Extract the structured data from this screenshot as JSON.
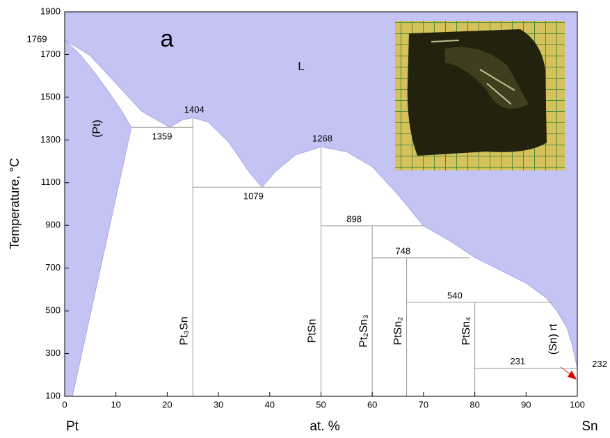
{
  "chart_data": {
    "type": "phase_diagram",
    "panel_label": "a",
    "liquid_label": "L",
    "pt_phase_label": "(Pt)",
    "sn_phase_label": "(Sn) rt",
    "y_label": "Temperature, °C",
    "x_label": "at. %",
    "left_label": "Pt",
    "right_label": "Sn",
    "liquid_color": "#c4c4f4",
    "solid_color": "#ffffff",
    "line_color": "#9a9a9a",
    "xlim": [
      0,
      100
    ],
    "ylim": [
      100,
      1900
    ],
    "xticks": [
      0,
      10,
      20,
      30,
      40,
      50,
      60,
      70,
      80,
      90,
      100
    ],
    "yticks": [
      100,
      300,
      500,
      700,
      900,
      1100,
      1300,
      1500,
      1700,
      1900
    ],
    "liquidus": {
      "x": [
        0,
        5,
        10,
        15,
        20.5,
        23,
        25,
        28,
        32,
        36,
        38.5,
        41,
        45,
        50,
        55,
        60,
        65,
        70,
        75,
        80,
        85,
        90,
        94,
        96,
        98,
        99,
        100
      ],
      "values": [
        1769,
        1695,
        1565,
        1435,
        1359,
        1395,
        1404,
        1385,
        1290,
        1150,
        1079,
        1150,
        1230,
        1268,
        1245,
        1175,
        1045,
        898,
        830,
        750,
        690,
        630,
        560,
        500,
        420,
        340,
        232
      ]
    },
    "solidus": {
      "x": [
        1.5,
        13,
        11,
        9,
        6,
        3,
        0
      ],
      "values": [
        100,
        1359,
        1440,
        1510,
        1610,
        1700,
        1769
      ]
    },
    "compounds": [
      {
        "label": "Pt₃Sn",
        "x": 25,
        "top": 1404,
        "congruent": true
      },
      {
        "label": "PtSn",
        "x": 50,
        "top": 1268,
        "congruent": true
      },
      {
        "label": "Pt₂Sn₃",
        "x": 60,
        "top": 898,
        "congruent": false
      },
      {
        "label": "PtSn₂",
        "x": 66.7,
        "top": 748,
        "congruent": false
      },
      {
        "label": "PtSn₄",
        "x": 80,
        "top": 540,
        "congruent": false
      }
    ],
    "isotherms": [
      {
        "temperature": 1359,
        "x": [
          13,
          25
        ]
      },
      {
        "temperature": 1079,
        "x": [
          25,
          50
        ]
      },
      {
        "temperature": 898,
        "x": [
          50,
          70
        ]
      },
      {
        "temperature": 748,
        "x": [
          60,
          79
        ]
      },
      {
        "temperature": 540,
        "x": [
          66.7,
          95
        ]
      },
      {
        "temperature": 231,
        "x": [
          80,
          100
        ]
      }
    ]
  }
}
